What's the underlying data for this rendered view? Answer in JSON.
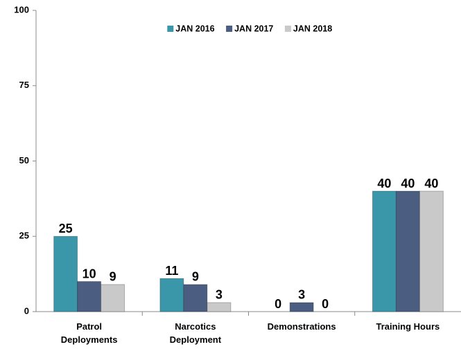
{
  "chart_data": {
    "type": "bar",
    "categories": [
      "Patrol Deployments",
      "Narcotics Deployment",
      "Demonstrations",
      "Training Hours"
    ],
    "series": [
      {
        "name": "JAN 2016",
        "color": "#3a97aa",
        "values": [
          25,
          11,
          0,
          40
        ]
      },
      {
        "name": "JAN 2017",
        "color": "#4b5d80",
        "values": [
          10,
          9,
          3,
          40
        ]
      },
      {
        "name": "JAN 2018",
        "color": "#c9c9c9",
        "values": [
          9,
          3,
          0,
          40
        ]
      }
    ],
    "ylim": [
      0,
      100
    ],
    "yticks": [
      0,
      25,
      50,
      75,
      100
    ],
    "grid": false,
    "legend": "top"
  }
}
